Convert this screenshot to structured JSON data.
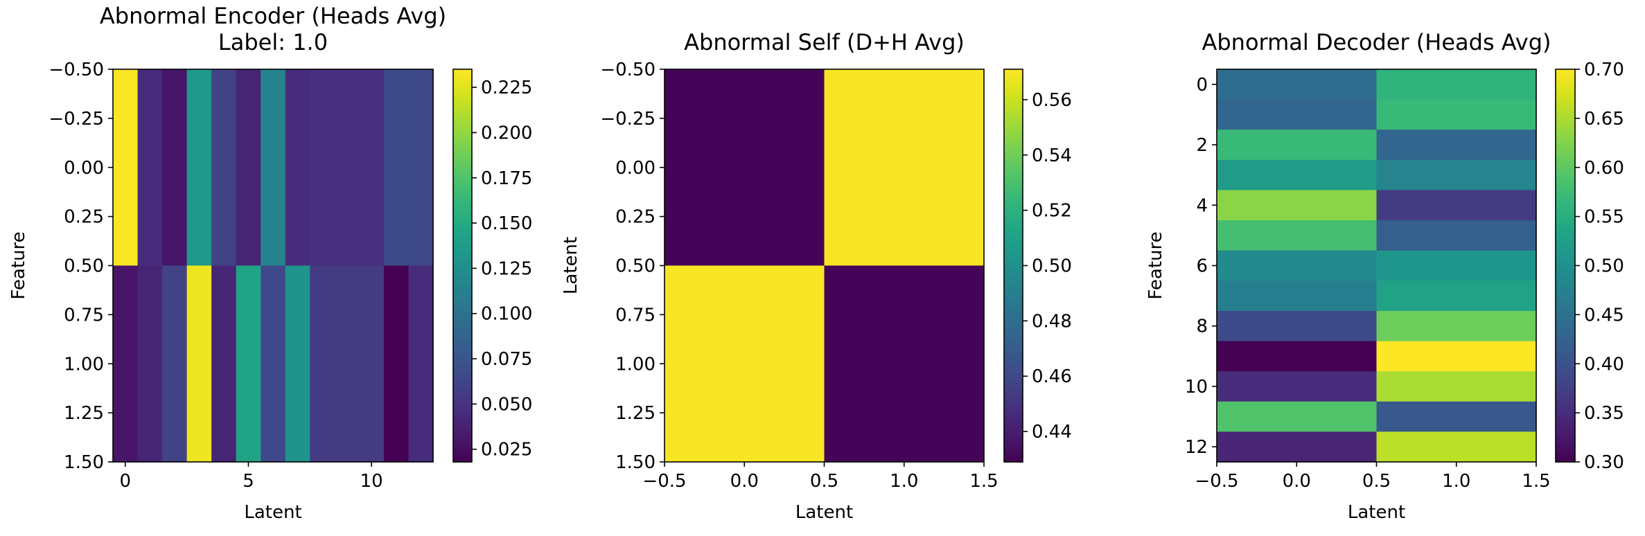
{
  "panels": [
    {
      "title": "Abnormal Encoder (Heads Avg)",
      "subtitle": "Label: 1.0",
      "xlabel": "Latent",
      "ylabel": "Feature",
      "xticks": [
        "0",
        "5",
        "10"
      ],
      "yticks": [
        "−0.50",
        "−0.25",
        "0.00",
        "0.25",
        "0.50",
        "0.75",
        "1.00",
        "1.25",
        "1.50"
      ],
      "cbar_ticks": [
        "0.025",
        "0.050",
        "0.075",
        "0.100",
        "0.125",
        "0.150",
        "0.175",
        "0.200",
        "0.225"
      ]
    },
    {
      "title": "Abnormal Self (D+H Avg)",
      "xlabel": "Latent",
      "ylabel": "Latent",
      "xticks": [
        "−0.5",
        "0.0",
        "0.5",
        "1.0",
        "1.5"
      ],
      "yticks": [
        "−0.50",
        "−0.25",
        "0.00",
        "0.25",
        "0.50",
        "0.75",
        "1.00",
        "1.25",
        "1.50"
      ],
      "cbar_ticks": [
        "0.44",
        "0.46",
        "0.48",
        "0.50",
        "0.52",
        "0.54",
        "0.56"
      ]
    },
    {
      "title": "Abnormal Decoder (Heads Avg)",
      "xlabel": "Latent",
      "ylabel": "Feature",
      "xticks": [
        "−0.5",
        "0.0",
        "0.5",
        "1.0",
        "1.5"
      ],
      "yticks": [
        "0",
        "2",
        "4",
        "6",
        "8",
        "10",
        "12"
      ],
      "cbar_ticks": [
        "0.30",
        "0.35",
        "0.40",
        "0.45",
        "0.50",
        "0.55",
        "0.60",
        "0.65",
        "0.70"
      ]
    }
  ],
  "chart_data": [
    {
      "type": "heatmap",
      "title": "Abnormal Encoder (Heads Avg)\nLabel: 1.0",
      "xlabel": "Latent",
      "ylabel": "Feature",
      "colormap": "viridis",
      "n_cols": 13,
      "n_rows": 2,
      "x_index": [
        0,
        1,
        2,
        3,
        4,
        5,
        6,
        7,
        8,
        9,
        10,
        11,
        12
      ],
      "xlim": [
        -0.5,
        12.5
      ],
      "ylim": [
        1.5,
        -0.5
      ],
      "vmin": 0.018,
      "vmax": 0.235,
      "values": [
        [
          0.234,
          0.045,
          0.03,
          0.135,
          0.06,
          0.04,
          0.115,
          0.045,
          0.048,
          0.048,
          0.048,
          0.068,
          0.065
        ],
        [
          0.03,
          0.04,
          0.06,
          0.23,
          0.04,
          0.145,
          0.065,
          0.13,
          0.055,
          0.055,
          0.055,
          0.018,
          0.045
        ]
      ],
      "cbar_ticks": [
        0.025,
        0.05,
        0.075,
        0.1,
        0.125,
        0.15,
        0.175,
        0.2,
        0.225
      ]
    },
    {
      "type": "heatmap",
      "title": "Abnormal Self (D+H Avg)",
      "xlabel": "Latent",
      "ylabel": "Latent",
      "colormap": "viridis",
      "n_cols": 2,
      "n_rows": 2,
      "xlim": [
        -0.5,
        1.5
      ],
      "ylim": [
        1.5,
        -0.5
      ],
      "vmin": 0.429,
      "vmax": 0.571,
      "values": [
        [
          0.43,
          0.57
        ],
        [
          0.57,
          0.43
        ]
      ],
      "cbar_ticks": [
        0.44,
        0.46,
        0.48,
        0.5,
        0.52,
        0.54,
        0.56
      ]
    },
    {
      "type": "heatmap",
      "title": "Abnormal Decoder (Heads Avg)",
      "xlabel": "Latent",
      "ylabel": "Feature",
      "colormap": "viridis",
      "n_cols": 2,
      "n_rows": 13,
      "xlim": [
        -0.5,
        1.5
      ],
      "ylim": [
        12.5,
        -0.5
      ],
      "vmin": 0.3,
      "vmax": 0.7,
      "values": [
        [
          0.44,
          0.56
        ],
        [
          0.43,
          0.57
        ],
        [
          0.57,
          0.43
        ],
        [
          0.52,
          0.48
        ],
        [
          0.63,
          0.37
        ],
        [
          0.58,
          0.42
        ],
        [
          0.49,
          0.51
        ],
        [
          0.47,
          0.53
        ],
        [
          0.39,
          0.61
        ],
        [
          0.3,
          0.7
        ],
        [
          0.35,
          0.65
        ],
        [
          0.59,
          0.41
        ],
        [
          0.34,
          0.66
        ]
      ],
      "cbar_ticks": [
        0.3,
        0.35,
        0.4,
        0.45,
        0.5,
        0.55,
        0.6,
        0.65,
        0.7
      ]
    }
  ]
}
